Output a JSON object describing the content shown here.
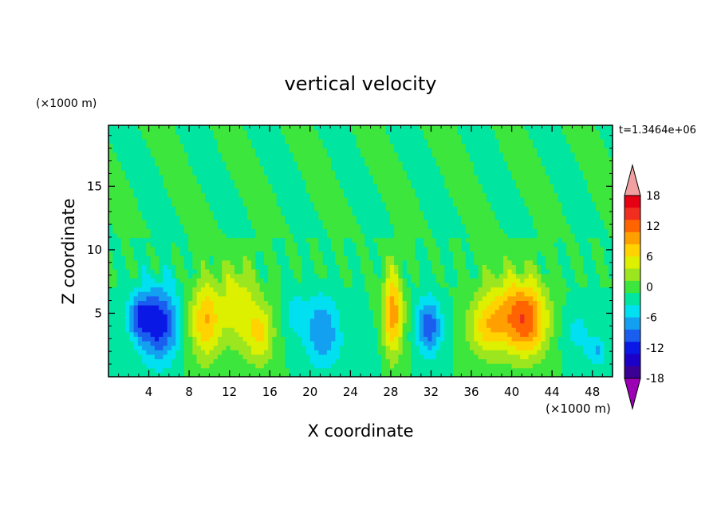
{
  "chart_data": {
    "type": "heatmap",
    "title": "vertical velocity",
    "xlabel": "X coordinate",
    "ylabel": "Z coordinate",
    "x_unit_label": "(×1000 m)",
    "y_unit_label": "(×1000 m)",
    "time_label": "t=1.3464e+06",
    "xlim": [
      0,
      50
    ],
    "ylim": [
      0,
      19.8
    ],
    "x_ticks": [
      4,
      8,
      12,
      16,
      20,
      24,
      28,
      32,
      36,
      40,
      44,
      48
    ],
    "y_ticks": [
      5,
      10,
      15
    ],
    "colorbar": {
      "ticks": [
        18,
        12,
        6,
        0,
        -6,
        -12,
        -18
      ],
      "levels": [
        -21,
        -18,
        -15,
        -12,
        -9,
        -6,
        -3,
        0,
        3,
        6,
        9,
        12,
        15,
        18,
        21
      ],
      "colors": [
        "#9b00b4",
        "#3a0096",
        "#1c00c8",
        "#0a18e6",
        "#1a5ef0",
        "#14a0f0",
        "#00e0f0",
        "#00e6a0",
        "#3ce63c",
        "#9be61e",
        "#dcf000",
        "#ffd200",
        "#ffa000",
        "#ff6400",
        "#f02d1e",
        "#e60014",
        "#f0a0a0"
      ]
    },
    "features": [
      {
        "x": 5.0,
        "z": 4.2,
        "sx": 1.4,
        "sz": 2.1,
        "value": -14
      },
      {
        "x": 3.0,
        "z": 4.8,
        "sx": 0.8,
        "sz": 1.2,
        "value": -9
      },
      {
        "x": 9.6,
        "z": 4.5,
        "sx": 1.1,
        "sz": 2.2,
        "value": 12
      },
      {
        "x": 12.8,
        "z": 5.8,
        "sx": 1.2,
        "sz": 2.4,
        "value": 8
      },
      {
        "x": 15.0,
        "z": 3.5,
        "sx": 1.0,
        "sz": 1.8,
        "value": 9
      },
      {
        "x": 21.2,
        "z": 3.6,
        "sx": 1.2,
        "sz": 2.0,
        "value": -9
      },
      {
        "x": 18.5,
        "z": 5.0,
        "sx": 0.8,
        "sz": 1.4,
        "value": -4
      },
      {
        "x": 28.2,
        "z": 5.0,
        "sx": 0.7,
        "sz": 2.4,
        "value": 14
      },
      {
        "x": 31.8,
        "z": 4.0,
        "sx": 0.9,
        "sz": 1.6,
        "value": -11
      },
      {
        "x": 37.5,
        "z": 3.8,
        "sx": 1.3,
        "sz": 1.6,
        "value": 8
      },
      {
        "x": 41.5,
        "z": 4.4,
        "sx": 1.5,
        "sz": 2.0,
        "value": 14
      },
      {
        "x": 39.5,
        "z": 5.5,
        "sx": 2.0,
        "sz": 2.3,
        "value": 7
      },
      {
        "x": 46.5,
        "z": 3.5,
        "sx": 1.1,
        "sz": 1.4,
        "value": -4
      },
      {
        "x": 48.5,
        "z": 2.0,
        "sx": 0.7,
        "sz": 0.8,
        "value": -6
      },
      {
        "x": 25.0,
        "z": 2.0,
        "sx": 1.5,
        "sz": 1.5,
        "value": -2
      }
    ]
  }
}
